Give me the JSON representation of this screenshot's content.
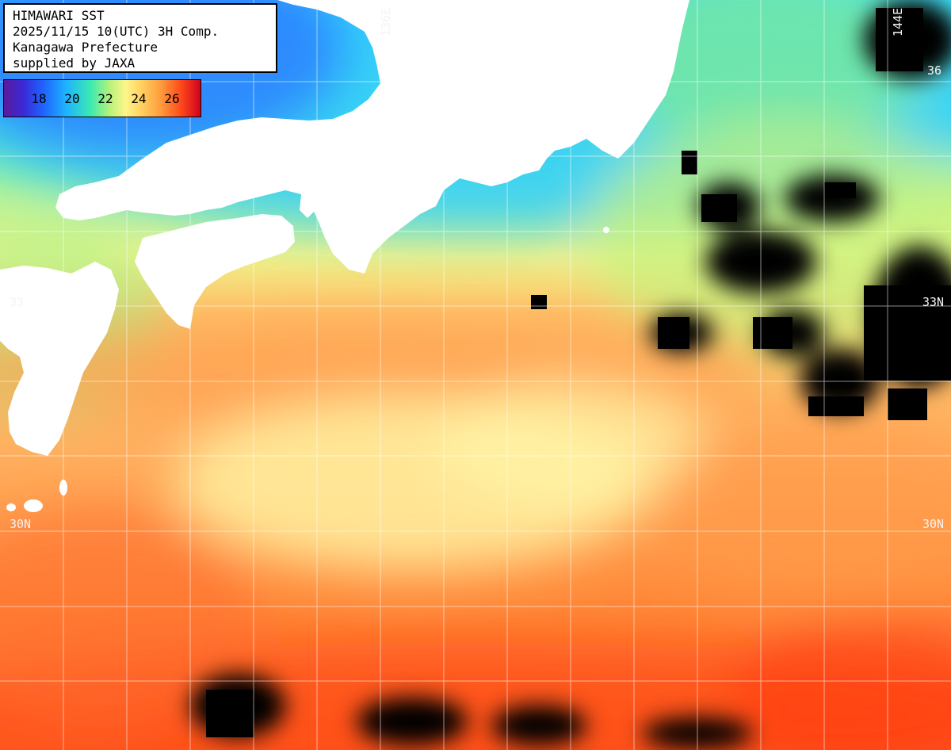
{
  "info": {
    "line1": "HIMAWARI SST",
    "line2": "2025/11/15 10(UTC) 3H Comp.",
    "line3": "Kanagawa Prefecture",
    "line4": "supplied by JAXA"
  },
  "colorbar": {
    "ticks": [
      "18",
      "20",
      "22",
      "24",
      "26"
    ],
    "colors": [
      "#5a1a9a",
      "#1f63ff",
      "#3aeab0",
      "#fff58a",
      "#ff9a3a",
      "#d00020"
    ]
  },
  "grid_labels": {
    "lon_136": "136E",
    "lon_144": "144E",
    "lat_33_left": "33",
    "lat_33_right": "33N",
    "lat_30_left": "30N",
    "lat_30_right": "30N",
    "lat_36_right": "36"
  },
  "colors": {
    "land": "#ffffff",
    "cloud_mask": "#000000",
    "grid": "#ffffff"
  }
}
